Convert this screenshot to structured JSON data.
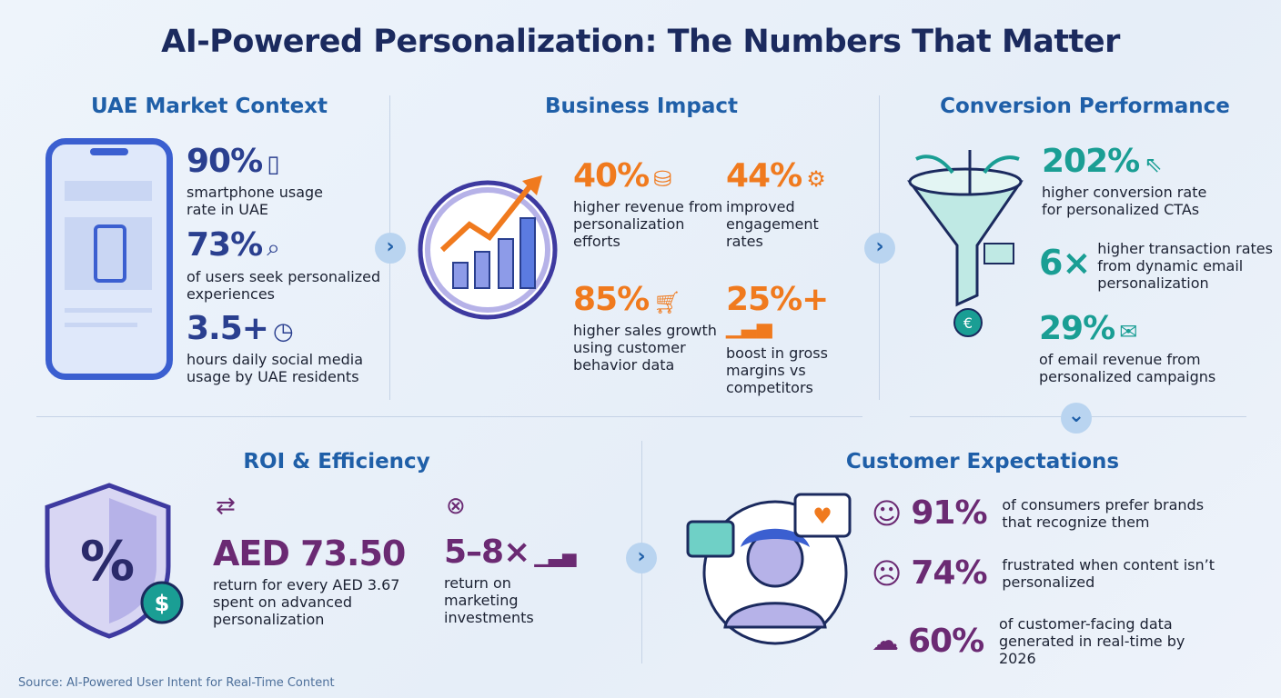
{
  "title": "AI-Powered Personalization: The Numbers That Matter",
  "sections": {
    "uae": {
      "title": "UAE Market Context",
      "stats": [
        {
          "value": "90%",
          "text": "smartphone usage rate in UAE",
          "icon": "smartphone-icon"
        },
        {
          "value": "73%",
          "text": "of users seek personalized experiences",
          "icon": "user-search-icon"
        },
        {
          "value": "3.5+",
          "text": "hours daily social media usage by UAE residents",
          "icon": "clock-icon"
        }
      ]
    },
    "business": {
      "title": "Business Impact",
      "stats": [
        {
          "value": "40%",
          "text": "higher revenue from personalization efforts",
          "icon": "coins-growth-icon"
        },
        {
          "value": "44%",
          "text": "improved engagement rates",
          "icon": "gears-icon"
        },
        {
          "value": "85%",
          "text": "higher sales growth using customer behavior data",
          "icon": "cart-growth-icon"
        },
        {
          "value": "25%+",
          "text": "boost in gross margins vs competitors",
          "icon": "bar-growth-icon"
        }
      ]
    },
    "conversion": {
      "title": "Conversion Performance",
      "stats": [
        {
          "value": "202%",
          "text": "higher conversion rate for personalized CTAs",
          "icon": "cursor-click-icon"
        },
        {
          "value": "6×",
          "text": "higher transaction rates from dynamic email personalization"
        },
        {
          "value": "29%",
          "text": "of email revenue from personalized campaigns",
          "icon": "email-money-icon"
        }
      ]
    },
    "roi": {
      "title": "ROI & Efficiency",
      "stats": [
        {
          "value": "AED 73.50",
          "text": "return for every AED 3.67 spent on advanced personalization",
          "icon": "currency-exchange-icon"
        },
        {
          "value": "5–8×",
          "text": "return on marketing investments",
          "icon": "bar-growth-icon"
        }
      ]
    },
    "customer": {
      "title": "Customer Expectations",
      "stats": [
        {
          "value": "91%",
          "text": "of consumers prefer brands that recognize them",
          "icon": "smile-icon"
        },
        {
          "value": "74%",
          "text": "frustrated when content isn’t personalized",
          "icon": "frown-icon"
        },
        {
          "value": "60%",
          "text": "of customer-facing data generated in real-time by 2026",
          "icon": "cloud-clock-icon"
        }
      ]
    }
  },
  "source": "Source: AI-Powered User Intent for Real-Time Content",
  "colors": {
    "title": "#1b2a5e",
    "section": "#1f5fa8",
    "uae": "#2a3f8f",
    "business": "#f07a1e",
    "conversion": "#1a9e94",
    "roi": "#6b2a73"
  }
}
